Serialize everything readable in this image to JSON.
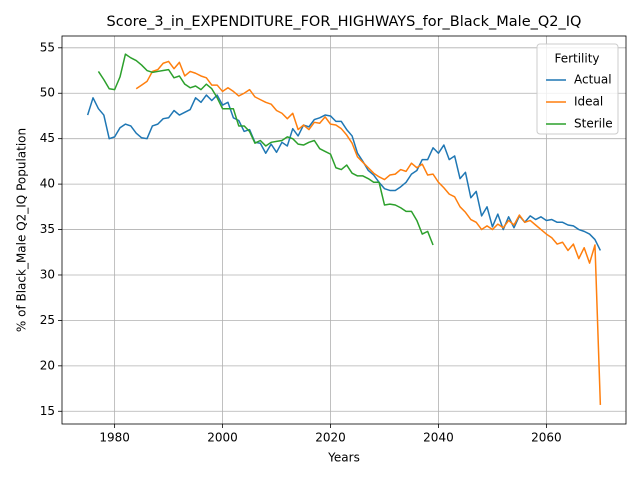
{
  "chart_data": {
    "type": "line",
    "title": "Score_3_in_EXPENDITURE_FOR_HIGHWAYS_for_Black_Male_Q2_IQ",
    "xlabel": "Years",
    "ylabel": "% of Black_Male Q2_IQ Population",
    "legend_title": "Fertility",
    "legend": "upper right",
    "grid": true,
    "xlim": [
      1970.25,
      2074.75
    ],
    "ylim": [
      13.6,
      56.3
    ],
    "xticks": [
      1980,
      2000,
      2020,
      2040,
      2060
    ],
    "yticks": [
      15,
      20,
      25,
      30,
      35,
      40,
      45,
      50,
      55
    ],
    "x": [
      1975,
      1976,
      1977,
      1978,
      1979,
      1980,
      1981,
      1982,
      1983,
      1984,
      1985,
      1986,
      1987,
      1988,
      1989,
      1990,
      1991,
      1992,
      1993,
      1994,
      1995,
      1996,
      1997,
      1998,
      1999,
      2000,
      2001,
      2002,
      2003,
      2004,
      2005,
      2006,
      2007,
      2008,
      2009,
      2010,
      2011,
      2012,
      2013,
      2014,
      2015,
      2016,
      2017,
      2018,
      2019,
      2020,
      2021,
      2022,
      2023,
      2024,
      2025,
      2026,
      2027,
      2028,
      2029,
      2030,
      2031,
      2032,
      2033,
      2034,
      2035,
      2036,
      2037,
      2038,
      2039,
      2040,
      2041,
      2042,
      2043,
      2044,
      2045,
      2046,
      2047,
      2048,
      2049,
      2050,
      2051,
      2052,
      2053,
      2054,
      2055,
      2056,
      2057,
      2058,
      2059,
      2060,
      2061,
      2062,
      2063,
      2064,
      2065,
      2066,
      2067,
      2068,
      2069,
      2070
    ],
    "series": [
      {
        "name": "Actual",
        "color": "#1f77b4",
        "values": [
          47.6,
          49.5,
          48.3,
          47.6,
          45.0,
          45.2,
          46.2,
          46.6,
          46.4,
          45.6,
          45.1,
          45.0,
          46.4,
          46.6,
          47.2,
          47.3,
          48.1,
          47.6,
          47.9,
          48.2,
          49.5,
          49.0,
          49.8,
          49.2,
          49.8,
          48.7,
          49.0,
          47.3,
          47.0,
          45.8,
          46.0,
          44.6,
          44.5,
          43.4,
          44.4,
          43.5,
          44.6,
          44.2,
          46.1,
          45.3,
          46.5,
          46.3,
          47.1,
          47.3,
          47.6,
          47.5,
          46.9,
          46.9,
          46.0,
          45.3,
          43.4,
          42.5,
          41.5,
          41.0,
          40.2,
          39.5,
          39.3,
          39.3,
          39.7,
          40.2,
          41.1,
          41.5,
          42.7,
          42.7,
          44.0,
          43.4,
          44.3,
          42.7,
          43.1,
          40.6,
          41.3,
          38.5,
          39.2,
          36.5,
          37.5,
          35.3,
          36.7,
          35.0,
          36.4,
          35.2,
          36.5,
          35.8,
          36.5,
          36.1,
          36.4,
          36.0,
          36.1,
          35.8,
          35.8,
          35.5,
          35.4,
          35.0,
          34.8,
          34.5,
          33.9,
          32.7
        ]
      },
      {
        "name": "Ideal",
        "color": "#ff7f0e",
        "values": [
          null,
          null,
          null,
          null,
          null,
          null,
          null,
          null,
          null,
          50.5,
          50.9,
          51.3,
          52.4,
          52.6,
          53.3,
          53.5,
          52.7,
          53.4,
          51.9,
          52.4,
          52.2,
          51.9,
          51.7,
          50.9,
          50.9,
          50.2,
          50.6,
          50.2,
          49.7,
          50.0,
          50.4,
          49.6,
          49.3,
          49.0,
          48.8,
          48.1,
          47.8,
          47.2,
          47.8,
          46.0,
          46.5,
          46.0,
          46.8,
          46.7,
          47.4,
          46.6,
          46.5,
          46.1,
          45.4,
          44.5,
          43.0,
          42.4,
          41.8,
          41.2,
          40.8,
          40.5,
          41.0,
          41.1,
          41.6,
          41.4,
          42.3,
          41.8,
          42.2,
          41.0,
          41.1,
          40.2,
          39.6,
          38.9,
          38.6,
          37.5,
          36.9,
          36.1,
          35.8,
          35.0,
          35.4,
          35.0,
          35.6,
          35.2,
          36.0,
          35.5,
          36.6,
          35.8,
          36.0,
          35.5,
          35.0,
          34.5,
          34.1,
          33.4,
          33.6,
          32.7,
          33.4,
          31.8,
          33.0,
          31.3,
          33.3,
          15.7
        ]
      },
      {
        "name": "Sterile",
        "color": "#2ca02c",
        "values": [
          null,
          null,
          52.4,
          51.5,
          50.5,
          50.4,
          51.8,
          54.3,
          53.9,
          53.6,
          53.1,
          52.5,
          52.3,
          52.4,
          52.5,
          52.6,
          51.7,
          51.9,
          51.0,
          50.6,
          50.8,
          50.4,
          51.0,
          50.5,
          49.5,
          48.3,
          48.3,
          48.3,
          46.4,
          46.4,
          45.8,
          44.5,
          44.8,
          44.2,
          44.6,
          44.7,
          44.8,
          45.2,
          45.0,
          44.4,
          44.3,
          44.6,
          44.8,
          43.9,
          43.6,
          43.3,
          41.8,
          41.6,
          42.1,
          41.2,
          40.9,
          40.9,
          40.6,
          40.2,
          40.2,
          37.7,
          37.8,
          37.7,
          37.4,
          37.0,
          37.0,
          36.0,
          34.5,
          34.8,
          33.3,
          null,
          null,
          null,
          null,
          null,
          null,
          null,
          null,
          null,
          null,
          null,
          null,
          null,
          null,
          null,
          null,
          null,
          null,
          null,
          null,
          null,
          null,
          null,
          null,
          null,
          null,
          null,
          null,
          null,
          null,
          null
        ]
      }
    ]
  }
}
